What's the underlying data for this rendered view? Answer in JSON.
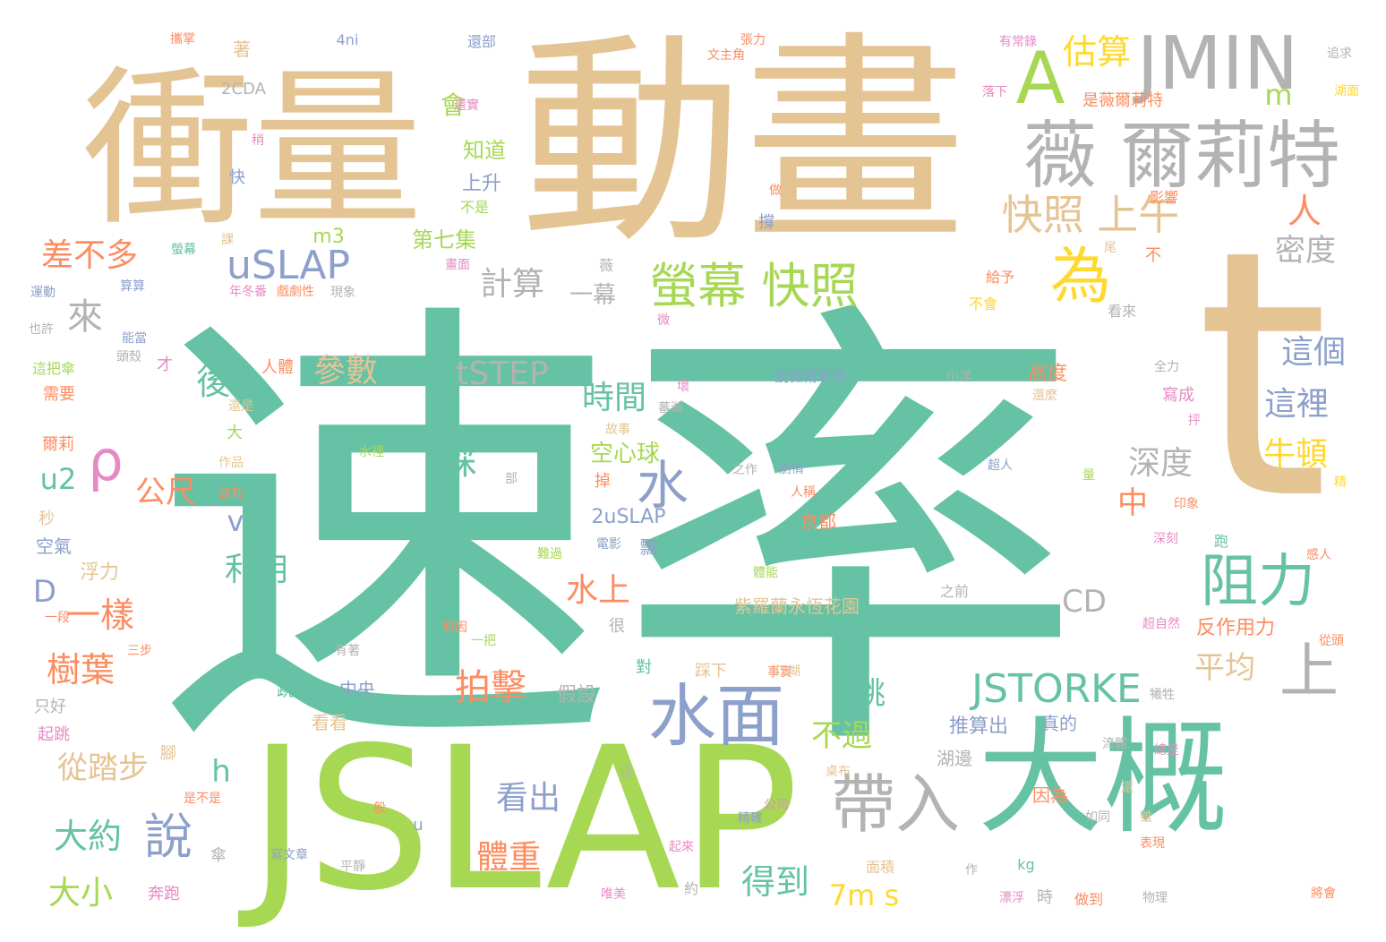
{
  "palette": {
    "teal": "#66c2a5",
    "tan": "#e5c494",
    "green": "#a6d854",
    "orange": "#fc8d62",
    "blue": "#8da0cb",
    "pink": "#e78ac3",
    "yellow": "#ffd92f",
    "gray": "#b3b3b3"
  },
  "words": [
    {
      "text": "速率",
      "color": "teal"
    },
    {
      "text": "t",
      "color": "tan"
    },
    {
      "text": "動畫",
      "color": "tan"
    },
    {
      "text": "衝量",
      "color": "tan"
    },
    {
      "text": "JSLAP",
      "color": "green"
    },
    {
      "text": "大概",
      "color": "teal"
    },
    {
      "text": "JMIN",
      "color": "gray"
    },
    {
      "text": "薇 爾莉特",
      "color": "gray"
    },
    {
      "text": "A",
      "color": "green"
    },
    {
      "text": "為",
      "color": "yellow"
    },
    {
      "text": "帶入",
      "color": "gray"
    },
    {
      "text": "水面",
      "color": "blue"
    },
    {
      "text": "阻力",
      "color": "teal"
    },
    {
      "text": "上",
      "color": "gray"
    },
    {
      "text": "螢幕 快照",
      "color": "green"
    },
    {
      "text": "快照 上午",
      "color": "tan"
    },
    {
      "text": "uSLAP",
      "color": "blue"
    },
    {
      "text": "水",
      "color": "blue"
    },
    {
      "text": "ρ",
      "color": "pink"
    },
    {
      "text": "說",
      "color": "blue"
    },
    {
      "text": "JSTORKE",
      "color": "teal"
    },
    {
      "text": "估算",
      "color": "yellow"
    },
    {
      "text": "人",
      "color": "orange"
    },
    {
      "text": "m",
      "color": "green"
    },
    {
      "text": "密度",
      "color": "gray"
    },
    {
      "text": "差不多",
      "color": "orange"
    },
    {
      "text": "來",
      "color": "gray"
    },
    {
      "text": "計算",
      "color": "gray"
    },
    {
      "text": "會",
      "color": "green"
    },
    {
      "text": "知道",
      "color": "green"
    },
    {
      "text": "上升",
      "color": "blue"
    },
    {
      "text": "不是",
      "color": "green"
    },
    {
      "text": "第七集",
      "color": "green"
    },
    {
      "text": "m3",
      "color": "green"
    },
    {
      "text": "一幕",
      "color": "gray"
    },
    {
      "text": "參數",
      "color": "tan"
    },
    {
      "text": "後",
      "color": "teal"
    },
    {
      "text": "tSTEP",
      "color": "gray"
    },
    {
      "text": "時間",
      "color": "teal"
    },
    {
      "text": "這個",
      "color": "blue"
    },
    {
      "text": "這裡",
      "color": "blue"
    },
    {
      "text": "牛頓",
      "color": "yellow"
    },
    {
      "text": "深度",
      "color": "gray"
    },
    {
      "text": "中",
      "color": "orange"
    },
    {
      "text": "踩",
      "color": "teal"
    },
    {
      "text": "空心球",
      "color": "green"
    },
    {
      "text": "高度",
      "color": "orange"
    },
    {
      "text": "公尺",
      "color": "orange"
    },
    {
      "text": "u2",
      "color": "teal"
    },
    {
      "text": "v",
      "color": "blue"
    },
    {
      "text": "利用",
      "color": "teal"
    },
    {
      "text": "水上",
      "color": "orange"
    },
    {
      "text": "2uSLAP",
      "color": "blue"
    },
    {
      "text": "D",
      "color": "blue"
    },
    {
      "text": "一樣",
      "color": "orange"
    },
    {
      "text": "CD",
      "color": "gray"
    },
    {
      "text": "平均",
      "color": "tan"
    },
    {
      "text": "樹葉",
      "color": "orange"
    },
    {
      "text": "拍擊",
      "color": "orange"
    },
    {
      "text": "跳",
      "color": "teal"
    },
    {
      "text": "不過",
      "color": "green"
    },
    {
      "text": "反作用力",
      "color": "orange"
    },
    {
      "text": "紫羅蘭永恆花園",
      "color": "tan"
    },
    {
      "text": "京都",
      "color": "orange"
    },
    {
      "text": "浮力",
      "color": "tan"
    },
    {
      "text": "從踏步",
      "color": "tan"
    },
    {
      "text": "h",
      "color": "teal"
    },
    {
      "text": "跳高",
      "color": "teal"
    },
    {
      "text": "中央",
      "color": "blue"
    },
    {
      "text": "假設",
      "color": "gray"
    },
    {
      "text": "推算出",
      "color": "blue"
    },
    {
      "text": "真的",
      "color": "blue"
    },
    {
      "text": "大約",
      "color": "teal"
    },
    {
      "text": "看出",
      "color": "blue"
    },
    {
      "text": "體重",
      "color": "orange"
    },
    {
      "text": "得到",
      "color": "teal"
    },
    {
      "text": "7m s",
      "color": "yellow"
    },
    {
      "text": "大小",
      "color": "green"
    },
    {
      "text": "湖邊",
      "color": "gray"
    },
    {
      "text": "因為",
      "color": "orange"
    },
    {
      "text": "看看",
      "color": "tan"
    },
    {
      "text": "空氣",
      "color": "blue"
    },
    {
      "text": "秒",
      "color": "tan"
    },
    {
      "text": "爾莉",
      "color": "orange"
    },
    {
      "text": "需要",
      "color": "orange"
    },
    {
      "text": "這把傘",
      "color": "green"
    },
    {
      "text": "人體",
      "color": "orange"
    },
    {
      "text": "只好",
      "color": "gray"
    },
    {
      "text": "起跳",
      "color": "pink"
    },
    {
      "text": "奔跑",
      "color": "pink"
    },
    {
      "text": "2CDA",
      "color": "gray"
    },
    {
      "text": "著",
      "color": "tan"
    },
    {
      "text": "4ni",
      "color": "blue"
    },
    {
      "text": "還部",
      "color": "blue"
    },
    {
      "text": "張力",
      "color": "orange"
    },
    {
      "text": "有常錄",
      "color": "pink"
    },
    {
      "text": "是薇爾莉特",
      "color": "orange"
    },
    {
      "text": "影響",
      "color": "orange"
    },
    {
      "text": "看來",
      "color": "gray"
    },
    {
      "text": "寫成",
      "color": "pink"
    },
    {
      "text": "跑",
      "color": "teal"
    },
    {
      "text": "說薇爾莉特",
      "color": "blue"
    },
    {
      "text": "小洋",
      "color": "gray"
    },
    {
      "text": "給予",
      "color": "orange"
    },
    {
      "text": "不會",
      "color": "yellow"
    },
    {
      "text": "掉",
      "color": "orange"
    },
    {
      "text": "快",
      "color": "blue"
    },
    {
      "text": "才",
      "color": "pink"
    },
    {
      "text": "作品",
      "color": "tan"
    },
    {
      "text": "想到",
      "color": "orange"
    },
    {
      "text": "電影",
      "color": "blue"
    },
    {
      "text": "面積",
      "color": "tan"
    },
    {
      "text": "kg",
      "color": "teal"
    },
    {
      "text": "時",
      "color": "gray"
    },
    {
      "text": "做到",
      "color": "orange"
    },
    {
      "text": "約",
      "color": "gray"
    },
    {
      "text": "u",
      "color": "blue"
    },
    {
      "text": "傘",
      "color": "gray"
    },
    {
      "text": "對",
      "color": "teal"
    },
    {
      "text": "很",
      "color": "gray"
    },
    {
      "text": "也許",
      "color": "gray"
    },
    {
      "text": "運動",
      "color": "blue"
    },
    {
      "text": "能當",
      "color": "blue"
    },
    {
      "text": "頭殼",
      "color": "gray"
    },
    {
      "text": "大",
      "color": "green"
    },
    {
      "text": "還是",
      "color": "tan"
    },
    {
      "text": "水裡",
      "color": "green"
    },
    {
      "text": "故事",
      "color": "tan"
    },
    {
      "text": "之前",
      "color": "gray"
    },
    {
      "text": "之作",
      "color": "gray"
    },
    {
      "text": "超人",
      "color": "blue"
    },
    {
      "text": "全力",
      "color": "gray"
    },
    {
      "text": "劇情",
      "color": "blue"
    },
    {
      "text": "人稱",
      "color": "orange"
    },
    {
      "text": "印象",
      "color": "orange"
    },
    {
      "text": "深刻",
      "color": "pink"
    },
    {
      "text": "感人",
      "color": "orange"
    },
    {
      "text": "從頭",
      "color": "orange"
    },
    {
      "text": "犧牲",
      "color": "gray"
    },
    {
      "text": "超自然",
      "color": "pink"
    },
    {
      "text": "事實",
      "color": "orange"
    },
    {
      "text": "流體",
      "color": "gray"
    },
    {
      "text": "桌布",
      "color": "tan"
    },
    {
      "text": "表現",
      "color": "orange"
    },
    {
      "text": "漂浮",
      "color": "pink"
    },
    {
      "text": "物理",
      "color": "gray"
    },
    {
      "text": "將會",
      "color": "orange"
    },
    {
      "text": "如同",
      "color": "gray"
    },
    {
      "text": "公司",
      "color": "pink"
    },
    {
      "text": "唯美",
      "color": "pink"
    },
    {
      "text": "平靜",
      "color": "gray"
    },
    {
      "text": "寫文章",
      "color": "blue"
    },
    {
      "text": "是不是",
      "color": "orange"
    },
    {
      "text": "一把",
      "color": "green"
    },
    {
      "text": "一段",
      "color": "orange"
    },
    {
      "text": "三步",
      "color": "orange"
    },
    {
      "text": "原因",
      "color": "orange"
    },
    {
      "text": "有著",
      "color": "gray"
    },
    {
      "text": "踩下",
      "color": "tan"
    },
    {
      "text": "江湖",
      "color": "tan"
    },
    {
      "text": "體能",
      "color": "green"
    },
    {
      "text": "難過",
      "color": "green"
    },
    {
      "text": "飄",
      "color": "blue"
    },
    {
      "text": "部",
      "color": "gray"
    },
    {
      "text": "現象",
      "color": "gray"
    },
    {
      "text": "戲劇性",
      "color": "orange"
    },
    {
      "text": "年冬番",
      "color": "pink"
    },
    {
      "text": "算算",
      "color": "blue"
    },
    {
      "text": "螢幕",
      "color": "teal"
    },
    {
      "text": "畫面",
      "color": "pink"
    },
    {
      "text": "薇",
      "color": "gray"
    },
    {
      "text": "尾",
      "color": "tan"
    },
    {
      "text": "不",
      "color": "orange"
    },
    {
      "text": "撐",
      "color": "blue"
    },
    {
      "text": "做",
      "color": "orange"
    },
    {
      "text": "微",
      "color": "pink"
    },
    {
      "text": "壞",
      "color": "pink"
    },
    {
      "text": "蕃湖",
      "color": "gray"
    },
    {
      "text": "稍",
      "color": "pink"
    },
    {
      "text": "落下",
      "color": "pink"
    },
    {
      "text": "還實",
      "color": "pink"
    },
    {
      "text": "文主角",
      "color": "orange"
    },
    {
      "text": "湖面",
      "color": "yellow"
    },
    {
      "text": "追求",
      "color": "gray"
    },
    {
      "text": "攜掌",
      "color": "orange"
    },
    {
      "text": "還麼",
      "color": "tan"
    },
    {
      "text": "抨",
      "color": "pink"
    },
    {
      "text": "精",
      "color": "yellow"
    },
    {
      "text": "精確",
      "color": "blue"
    },
    {
      "text": "雖",
      "color": "tan"
    },
    {
      "text": "起來",
      "color": "pink"
    },
    {
      "text": "還",
      "color": "tan"
    },
    {
      "text": "般",
      "color": "orange"
    },
    {
      "text": "話",
      "color": "gray"
    },
    {
      "text": "腳",
      "color": "tan"
    },
    {
      "text": "總是",
      "color": "pink"
    },
    {
      "text": "量",
      "color": "green"
    },
    {
      "text": "課",
      "color": "tan"
    },
    {
      "text": "作",
      "color": "gray"
    }
  ]
}
